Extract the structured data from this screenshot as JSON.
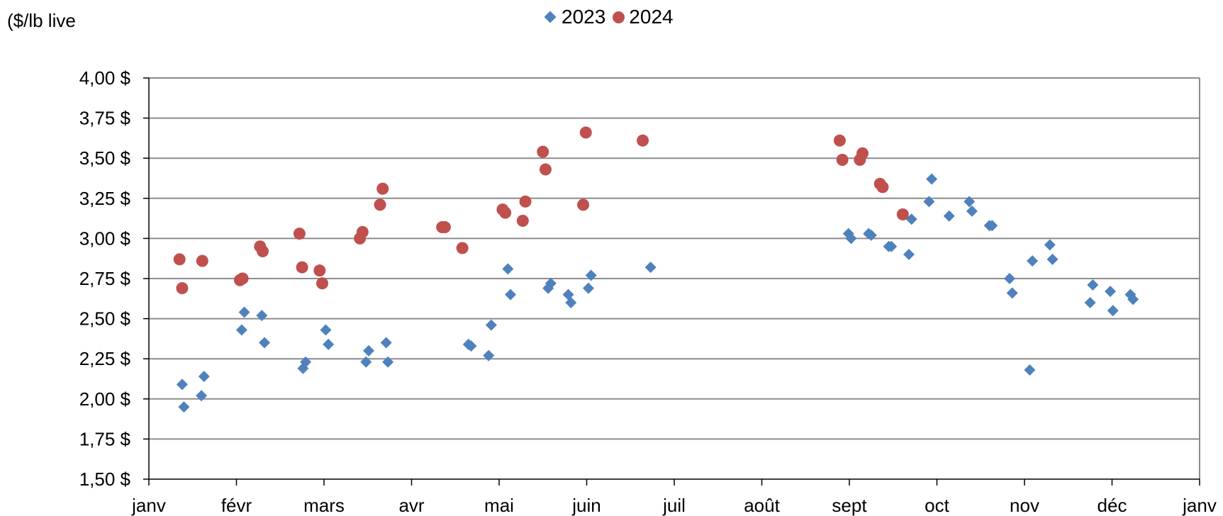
{
  "chart_data": {
    "type": "scatter",
    "unit_label": "($/lb live",
    "ylim": [
      1.5,
      4.0
    ],
    "y_ticks": [
      {
        "value": 1.5,
        "label": "1,50 $"
      },
      {
        "value": 1.75,
        "label": "1,75 $"
      },
      {
        "value": 2.0,
        "label": "2,00 $"
      },
      {
        "value": 2.25,
        "label": "2,25 $"
      },
      {
        "value": 2.5,
        "label": "2,50 $"
      },
      {
        "value": 2.75,
        "label": "2,75 $"
      },
      {
        "value": 3.0,
        "label": "3,00 $"
      },
      {
        "value": 3.25,
        "label": "3,25 $"
      },
      {
        "value": 3.5,
        "label": "3,50 $"
      },
      {
        "value": 3.75,
        "label": "3,75 $"
      },
      {
        "value": 4.0,
        "label": "4,00 $"
      }
    ],
    "x_ticks": [
      "janv",
      "févr",
      "mars",
      "avr",
      "mai",
      "juin",
      "juil",
      "août",
      "sept",
      "oct",
      "nov",
      "déc",
      "janv"
    ],
    "xlim_months": [
      0,
      12
    ],
    "grid": "horizontal",
    "legend_position": "top-center",
    "series": [
      {
        "name": "2023",
        "marker": "diamond",
        "color": "#4f81bd",
        "points": [
          {
            "x": 0.38,
            "y": 2.09
          },
          {
            "x": 0.4,
            "y": 1.95
          },
          {
            "x": 0.6,
            "y": 2.02
          },
          {
            "x": 0.63,
            "y": 2.14
          },
          {
            "x": 1.06,
            "y": 2.43
          },
          {
            "x": 1.09,
            "y": 2.54
          },
          {
            "x": 1.29,
            "y": 2.52
          },
          {
            "x": 1.32,
            "y": 2.35
          },
          {
            "x": 1.76,
            "y": 2.19
          },
          {
            "x": 1.79,
            "y": 2.23
          },
          {
            "x": 2.02,
            "y": 2.43
          },
          {
            "x": 2.05,
            "y": 2.34
          },
          {
            "x": 2.48,
            "y": 2.23
          },
          {
            "x": 2.51,
            "y": 2.3
          },
          {
            "x": 2.71,
            "y": 2.35
          },
          {
            "x": 2.73,
            "y": 2.23
          },
          {
            "x": 3.65,
            "y": 2.34
          },
          {
            "x": 3.68,
            "y": 2.33
          },
          {
            "x": 3.88,
            "y": 2.27
          },
          {
            "x": 3.91,
            "y": 2.46
          },
          {
            "x": 4.1,
            "y": 2.81
          },
          {
            "x": 4.13,
            "y": 2.65
          },
          {
            "x": 4.56,
            "y": 2.69
          },
          {
            "x": 4.59,
            "y": 2.72
          },
          {
            "x": 4.79,
            "y": 2.65
          },
          {
            "x": 4.82,
            "y": 2.6
          },
          {
            "x": 5.02,
            "y": 2.69
          },
          {
            "x": 5.05,
            "y": 2.77
          },
          {
            "x": 5.73,
            "y": 2.82
          },
          {
            "x": 7.99,
            "y": 3.03
          },
          {
            "x": 8.02,
            "y": 3.0
          },
          {
            "x": 8.22,
            "y": 3.03
          },
          {
            "x": 8.25,
            "y": 3.02
          },
          {
            "x": 8.45,
            "y": 2.95
          },
          {
            "x": 8.48,
            "y": 2.95
          },
          {
            "x": 8.68,
            "y": 2.9
          },
          {
            "x": 8.71,
            "y": 3.12
          },
          {
            "x": 8.91,
            "y": 3.23
          },
          {
            "x": 8.94,
            "y": 3.37
          },
          {
            "x": 9.14,
            "y": 3.14
          },
          {
            "x": 9.37,
            "y": 3.23
          },
          {
            "x": 9.4,
            "y": 3.17
          },
          {
            "x": 9.6,
            "y": 3.08
          },
          {
            "x": 9.63,
            "y": 3.08
          },
          {
            "x": 9.83,
            "y": 2.75
          },
          {
            "x": 9.86,
            "y": 2.66
          },
          {
            "x": 10.06,
            "y": 2.18
          },
          {
            "x": 10.09,
            "y": 2.86
          },
          {
            "x": 10.29,
            "y": 2.96
          },
          {
            "x": 10.32,
            "y": 2.87
          },
          {
            "x": 10.75,
            "y": 2.6
          },
          {
            "x": 10.78,
            "y": 2.71
          },
          {
            "x": 10.98,
            "y": 2.67
          },
          {
            "x": 11.01,
            "y": 2.55
          },
          {
            "x": 11.21,
            "y": 2.65
          },
          {
            "x": 11.24,
            "y": 2.62
          }
        ]
      },
      {
        "name": "2024",
        "marker": "circle",
        "color": "#c0504d",
        "points": [
          {
            "x": 0.35,
            "y": 2.87
          },
          {
            "x": 0.38,
            "y": 2.69
          },
          {
            "x": 0.61,
            "y": 2.86
          },
          {
            "x": 1.04,
            "y": 2.74
          },
          {
            "x": 1.07,
            "y": 2.75
          },
          {
            "x": 1.27,
            "y": 2.95
          },
          {
            "x": 1.3,
            "y": 2.92
          },
          {
            "x": 1.72,
            "y": 3.03
          },
          {
            "x": 1.75,
            "y": 2.82
          },
          {
            "x": 1.95,
            "y": 2.8
          },
          {
            "x": 1.98,
            "y": 2.72
          },
          {
            "x": 2.41,
            "y": 3.0
          },
          {
            "x": 2.44,
            "y": 3.04
          },
          {
            "x": 2.64,
            "y": 3.21
          },
          {
            "x": 2.67,
            "y": 3.31
          },
          {
            "x": 3.35,
            "y": 3.07
          },
          {
            "x": 3.38,
            "y": 3.07
          },
          {
            "x": 3.58,
            "y": 2.94
          },
          {
            "x": 4.04,
            "y": 3.18
          },
          {
            "x": 4.07,
            "y": 3.16
          },
          {
            "x": 4.27,
            "y": 3.11
          },
          {
            "x": 4.3,
            "y": 3.23
          },
          {
            "x": 4.5,
            "y": 3.54
          },
          {
            "x": 4.53,
            "y": 3.43
          },
          {
            "x": 4.96,
            "y": 3.21
          },
          {
            "x": 4.99,
            "y": 3.66
          },
          {
            "x": 5.64,
            "y": 3.61
          },
          {
            "x": 7.89,
            "y": 3.61
          },
          {
            "x": 7.92,
            "y": 3.49
          },
          {
            "x": 8.12,
            "y": 3.49
          },
          {
            "x": 8.15,
            "y": 3.53
          },
          {
            "x": 8.35,
            "y": 3.34
          },
          {
            "x": 8.38,
            "y": 3.32
          },
          {
            "x": 8.61,
            "y": 3.15
          }
        ]
      }
    ]
  }
}
